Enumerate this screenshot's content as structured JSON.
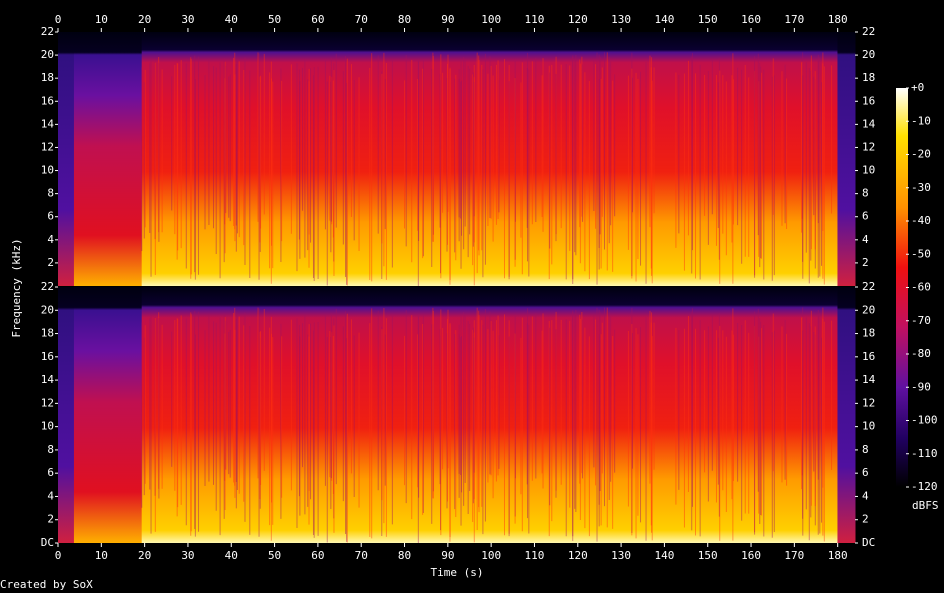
{
  "chart_data": {
    "type": "spectrogram",
    "x_label": "Time (s)",
    "y_label": "Frequency (kHz)",
    "xlim": [
      0,
      184
    ],
    "xticks": [
      0,
      10,
      20,
      30,
      40,
      50,
      60,
      70,
      80,
      90,
      100,
      110,
      120,
      130,
      140,
      150,
      160,
      170,
      180
    ],
    "channels": [
      {
        "ylim": [
          0,
          22
        ],
        "yticks": [
          2,
          4,
          6,
          8,
          10,
          12,
          14,
          16,
          18,
          20,
          22
        ]
      },
      {
        "ylim": [
          0,
          22
        ],
        "yticks": [
          {
            "value": 0,
            "label": "DC"
          },
          2,
          4,
          6,
          8,
          10,
          12,
          14,
          16,
          18,
          20,
          22
        ]
      }
    ],
    "colorbar": {
      "label": "dBFS",
      "clim": [
        -120,
        0
      ],
      "ticks": [
        {
          "value": 0,
          "label": "+0"
        },
        -10,
        -20,
        -30,
        -40,
        -50,
        -60,
        -70,
        -80,
        -90,
        -100,
        -110,
        -120
      ]
    }
  },
  "footer": "Created by SoX"
}
